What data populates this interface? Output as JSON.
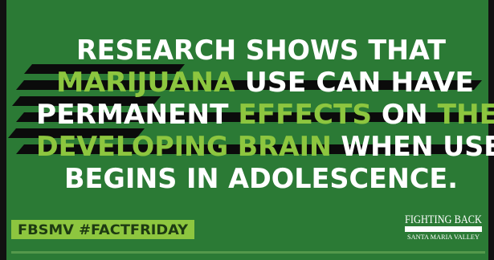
{
  "headline": {
    "lines": [
      [
        {
          "text": "RESEARCH SHOWS THAT",
          "highlight": false
        }
      ],
      [
        {
          "text": "MARIJUANA",
          "highlight": true
        },
        {
          "text": " USE CAN HAVE",
          "highlight": false
        }
      ],
      [
        {
          "text": "PERMANENT ",
          "highlight": false
        },
        {
          "text": "EFFECTS",
          "highlight": true
        },
        {
          "text": " ON ",
          "highlight": false
        },
        {
          "text": "THE",
          "highlight": true
        }
      ],
      [
        {
          "text": "DEVELOPING BRAIN",
          "highlight": true
        },
        {
          "text": " WHEN USE",
          "highlight": false
        }
      ],
      [
        {
          "text": "BEGINS IN ADOLESCENCE.",
          "highlight": false
        }
      ]
    ]
  },
  "hashtag": "FBSMV #FACTFRIDAY",
  "logo": {
    "title": "FIGHTING BACK",
    "subtitle": "SANTA MARIA VALLEY"
  },
  "colors": {
    "background": "#2b7a35",
    "highlight": "#8dc63f",
    "text": "#ffffff"
  }
}
